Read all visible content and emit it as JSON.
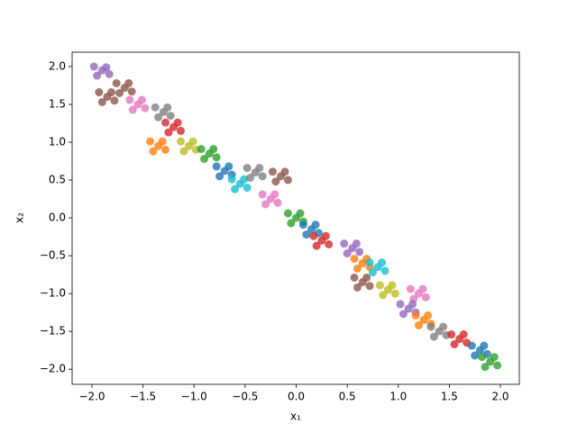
{
  "chart_data": {
    "type": "scatter",
    "xlabel": "x₁",
    "ylabel": "x₂",
    "xlim": [
      -2.194,
      2.185
    ],
    "ylim": [
      -2.2,
      2.19
    ],
    "xticks": [
      {
        "value": -2,
        "label": "−2.0"
      },
      {
        "value": -1.5,
        "label": "−1.5"
      },
      {
        "value": -1,
        "label": "−1.0"
      },
      {
        "value": -0.5,
        "label": "−0.5"
      },
      {
        "value": 0,
        "label": "0.0"
      },
      {
        "value": 0.5,
        "label": "0.5"
      },
      {
        "value": 1,
        "label": "1.0"
      },
      {
        "value": 1.5,
        "label": "1.5"
      },
      {
        "value": 2,
        "label": "2.0"
      }
    ],
    "yticks": [
      {
        "value": -2,
        "label": "−2.0"
      },
      {
        "value": -1.5,
        "label": "−1.5"
      },
      {
        "value": -1,
        "label": "−1.0"
      },
      {
        "value": -0.5,
        "label": "−0.5"
      },
      {
        "value": 0,
        "label": "0.0"
      },
      {
        "value": 0.5,
        "label": "0.5"
      },
      {
        "value": 1,
        "label": "1.0"
      },
      {
        "value": 1.5,
        "label": "1.5"
      },
      {
        "value": 2,
        "label": "2.0"
      }
    ],
    "series": [
      {
        "color": "#9467bd",
        "x": [
          -1.9,
          -1.83,
          -1.98,
          -1.86,
          -1.95
        ],
        "y": [
          1.95,
          1.9,
          2.0,
          1.99,
          1.88
        ]
      },
      {
        "color": "#8c564b",
        "x": [
          -1.85,
          -1.78,
          -1.93,
          -1.81,
          -1.9
        ],
        "y": [
          1.6,
          1.55,
          1.66,
          1.66,
          1.53
        ]
      },
      {
        "color": "#8c564b",
        "x": [
          -1.68,
          -1.61,
          -1.76,
          -1.64,
          -1.73
        ],
        "y": [
          1.72,
          1.67,
          1.78,
          1.78,
          1.65
        ]
      },
      {
        "color": "#e377c2",
        "x": [
          -1.55,
          -1.48,
          -1.63,
          -1.51,
          -1.6
        ],
        "y": [
          1.5,
          1.45,
          1.56,
          1.56,
          1.43
        ]
      },
      {
        "color": "#7f7f7f",
        "x": [
          -1.3,
          -1.23,
          -1.38,
          -1.26,
          -1.35
        ],
        "y": [
          1.4,
          1.35,
          1.46,
          1.46,
          1.33
        ]
      },
      {
        "color": "#d62728",
        "x": [
          -1.2,
          -1.13,
          -1.28,
          -1.16,
          -1.25
        ],
        "y": [
          1.2,
          1.15,
          1.26,
          1.26,
          1.13
        ]
      },
      {
        "color": "#ff7f0e",
        "x": [
          -1.35,
          -1.28,
          -1.43,
          -1.31,
          -1.4
        ],
        "y": [
          0.95,
          0.9,
          1.01,
          1.01,
          0.88
        ]
      },
      {
        "color": "#bcbd22",
        "x": [
          -1.05,
          -0.98,
          -1.13,
          -1.01,
          -1.1
        ],
        "y": [
          0.95,
          0.9,
          1.01,
          1.01,
          0.88
        ]
      },
      {
        "color": "#2ca02c",
        "x": [
          -0.85,
          -0.78,
          -0.93,
          -0.81,
          -0.9
        ],
        "y": [
          0.85,
          0.8,
          0.91,
          0.91,
          0.78
        ]
      },
      {
        "color": "#1f77b4",
        "x": [
          -0.7,
          -0.63,
          -0.78,
          -0.66,
          -0.75
        ],
        "y": [
          0.62,
          0.57,
          0.68,
          0.68,
          0.55
        ]
      },
      {
        "color": "#17becf",
        "x": [
          -0.55,
          -0.48,
          -0.63,
          -0.51,
          -0.6
        ],
        "y": [
          0.45,
          0.4,
          0.51,
          0.51,
          0.38
        ]
      },
      {
        "color": "#7f7f7f",
        "x": [
          -0.4,
          -0.33,
          -0.48,
          -0.36,
          -0.45
        ],
        "y": [
          0.6,
          0.55,
          0.66,
          0.66,
          0.53
        ]
      },
      {
        "color": "#8c564b",
        "x": [
          -0.15,
          -0.08,
          -0.23,
          -0.11,
          -0.2
        ],
        "y": [
          0.55,
          0.5,
          0.61,
          0.61,
          0.48
        ]
      },
      {
        "color": "#e377c2",
        "x": [
          -0.25,
          -0.18,
          -0.33,
          -0.21,
          -0.3
        ],
        "y": [
          0.25,
          0.2,
          0.31,
          0.31,
          0.18
        ]
      },
      {
        "color": "#2ca02c",
        "x": [
          0,
          0.07,
          -0.08,
          0.04,
          -0.05
        ],
        "y": [
          0,
          -0.05,
          0.06,
          0.06,
          -0.07
        ]
      },
      {
        "color": "#1f77b4",
        "x": [
          0.15,
          0.22,
          0.07,
          0.19,
          0.1
        ],
        "y": [
          -0.15,
          -0.2,
          -0.09,
          -0.09,
          -0.22
        ]
      },
      {
        "color": "#d62728",
        "x": [
          0.25,
          0.32,
          0.17,
          0.29,
          0.2
        ],
        "y": [
          -0.3,
          -0.35,
          -0.24,
          -0.24,
          -0.37
        ]
      },
      {
        "color": "#9467bd",
        "x": [
          0.55,
          0.62,
          0.47,
          0.59,
          0.5
        ],
        "y": [
          -0.4,
          -0.45,
          -0.34,
          -0.34,
          -0.47
        ]
      },
      {
        "color": "#ff7f0e",
        "x": [
          0.65,
          0.72,
          0.57,
          0.69,
          0.6
        ],
        "y": [
          -0.6,
          -0.65,
          -0.54,
          -0.54,
          -0.67
        ]
      },
      {
        "color": "#17becf",
        "x": [
          0.8,
          0.87,
          0.72,
          0.84,
          0.75
        ],
        "y": [
          -0.65,
          -0.7,
          -0.59,
          -0.59,
          -0.72
        ]
      },
      {
        "color": "#8c564b",
        "x": [
          0.65,
          0.72,
          0.57,
          0.69,
          0.6
        ],
        "y": [
          -0.85,
          -0.9,
          -0.79,
          -0.79,
          -0.92
        ]
      },
      {
        "color": "#bcbd22",
        "x": [
          0.9,
          0.97,
          0.82,
          0.94,
          0.85
        ],
        "y": [
          -0.95,
          -1.0,
          -0.89,
          -0.89,
          -1.02
        ]
      },
      {
        "color": "#e377c2",
        "x": [
          1.2,
          1.27,
          1.12,
          1.24,
          1.15
        ],
        "y": [
          -1.0,
          -1.05,
          -0.94,
          -0.94,
          -1.07
        ]
      },
      {
        "color": "#9467bd",
        "x": [
          1.1,
          1.17,
          1.02,
          1.14,
          1.05
        ],
        "y": [
          -1.2,
          -1.25,
          -1.14,
          -1.14,
          -1.27
        ]
      },
      {
        "color": "#ff7f0e",
        "x": [
          1.25,
          1.32,
          1.17,
          1.29,
          1.2
        ],
        "y": [
          -1.35,
          -1.4,
          -1.29,
          -1.29,
          -1.42
        ]
      },
      {
        "color": "#7f7f7f",
        "x": [
          1.4,
          1.47,
          1.32,
          1.44,
          1.35
        ],
        "y": [
          -1.5,
          -1.55,
          -1.44,
          -1.44,
          -1.57
        ]
      },
      {
        "color": "#d62728",
        "x": [
          1.6,
          1.67,
          1.52,
          1.64,
          1.55
        ],
        "y": [
          -1.6,
          -1.65,
          -1.54,
          -1.54,
          -1.67
        ]
      },
      {
        "color": "#1f77b4",
        "x": [
          1.8,
          1.87,
          1.72,
          1.84,
          1.75
        ],
        "y": [
          -1.75,
          -1.8,
          -1.69,
          -1.69,
          -1.82
        ]
      },
      {
        "color": "#2ca02c",
        "x": [
          1.9,
          1.97,
          1.82,
          1.94,
          1.85
        ],
        "y": [
          -1.9,
          -1.95,
          -1.84,
          -1.84,
          -1.97
        ]
      }
    ]
  }
}
